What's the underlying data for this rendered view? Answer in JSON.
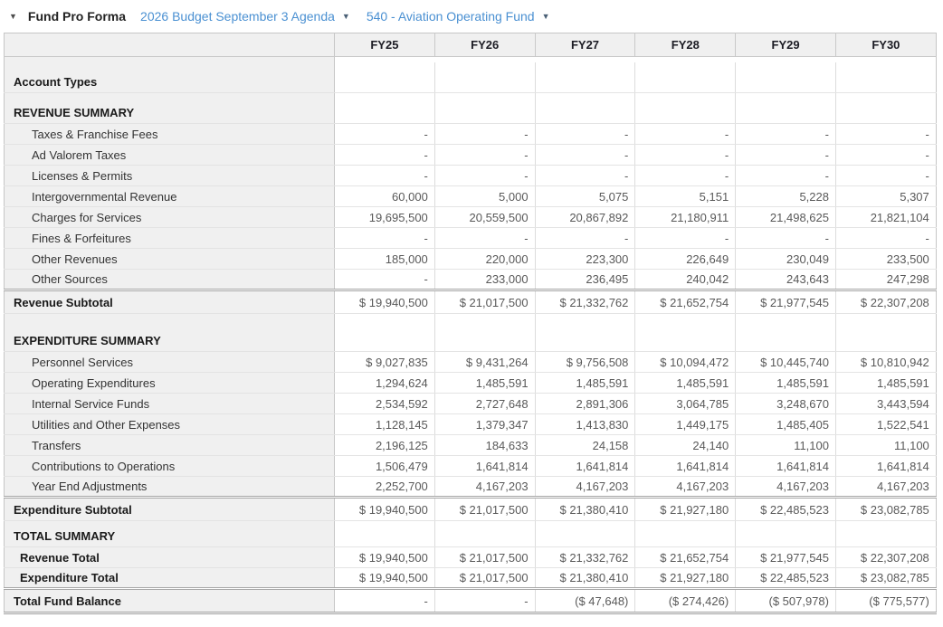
{
  "toolbar": {
    "collapse_icon": "▼",
    "title": "Fund Pro Forma",
    "budget_dropdown_label": "2026 Budget September 3 Agenda",
    "fund_dropdown_label": "540 - Aviation Operating Fund",
    "dropdown_caret": "▼"
  },
  "colors": {
    "link_blue": "#4a90d2",
    "header_bg": "#f0f0f0",
    "grid_line": "#dcdcdc",
    "number_text": "#595959"
  },
  "table": {
    "columns": [
      "FY25",
      "FY26",
      "FY27",
      "FY28",
      "FY29",
      "FY30"
    ],
    "rows": [
      {
        "label": "Account Types",
        "type": "section",
        "size": "md",
        "values": [
          "",
          "",
          "",
          "",
          "",
          ""
        ]
      },
      {
        "label": "REVENUE SUMMARY",
        "type": "section",
        "size": "md",
        "values": [
          "",
          "",
          "",
          "",
          "",
          ""
        ]
      },
      {
        "label": "Taxes & Franchise Fees",
        "type": "detail",
        "values": [
          "-",
          "-",
          "-",
          "-",
          "-",
          "-"
        ]
      },
      {
        "label": "Ad Valorem Taxes",
        "type": "detail",
        "values": [
          "-",
          "-",
          "-",
          "-",
          "-",
          "-"
        ]
      },
      {
        "label": "Licenses & Permits",
        "type": "detail",
        "values": [
          "-",
          "-",
          "-",
          "-",
          "-",
          "-"
        ]
      },
      {
        "label": "Intergovernmental Revenue",
        "type": "detail",
        "values": [
          "60,000",
          "5,000",
          "5,075",
          "5,151",
          "5,228",
          "5,307"
        ]
      },
      {
        "label": "Charges for Services",
        "type": "detail",
        "values": [
          "19,695,500",
          "20,559,500",
          "20,867,892",
          "21,180,911",
          "21,498,625",
          "21,821,104"
        ]
      },
      {
        "label": "Fines & Forfeitures",
        "type": "detail",
        "values": [
          "-",
          "-",
          "-",
          "-",
          "-",
          "-"
        ]
      },
      {
        "label": "Other Revenues",
        "type": "detail",
        "values": [
          "185,000",
          "220,000",
          "223,300",
          "226,649",
          "230,049",
          "233,500"
        ]
      },
      {
        "label": "Other Sources",
        "type": "detail",
        "values": [
          "-",
          "233,000",
          "236,495",
          "240,042",
          "243,643",
          "247,298"
        ]
      },
      {
        "label": "Revenue Subtotal",
        "type": "subtotal",
        "values": [
          "$ 19,940,500",
          "$ 21,017,500",
          "$ 21,332,762",
          "$ 21,652,754",
          "$ 21,977,545",
          "$ 22,307,208"
        ]
      },
      {
        "label": "EXPENDITURE SUMMARY",
        "type": "section",
        "size": "lg",
        "values": [
          "",
          "",
          "",
          "",
          "",
          ""
        ]
      },
      {
        "label": "Personnel Services",
        "type": "detail",
        "values": [
          "$ 9,027,835",
          "$ 9,431,264",
          "$ 9,756,508",
          "$ 10,094,472",
          "$ 10,445,740",
          "$ 10,810,942"
        ]
      },
      {
        "label": "Operating Expenditures",
        "type": "detail",
        "values": [
          "1,294,624",
          "1,485,591",
          "1,485,591",
          "1,485,591",
          "1,485,591",
          "1,485,591"
        ]
      },
      {
        "label": "Internal Service Funds",
        "type": "detail",
        "values": [
          "2,534,592",
          "2,727,648",
          "2,891,306",
          "3,064,785",
          "3,248,670",
          "3,443,594"
        ]
      },
      {
        "label": "Utilities and Other Expenses",
        "type": "detail",
        "values": [
          "1,128,145",
          "1,379,347",
          "1,413,830",
          "1,449,175",
          "1,485,405",
          "1,522,541"
        ]
      },
      {
        "label": "Transfers",
        "type": "detail",
        "values": [
          "2,196,125",
          "184,633",
          "24,158",
          "24,140",
          "11,100",
          "11,100"
        ]
      },
      {
        "label": "Contributions to Operations",
        "type": "detail",
        "values": [
          "1,506,479",
          "1,641,814",
          "1,641,814",
          "1,641,814",
          "1,641,814",
          "1,641,814"
        ]
      },
      {
        "label": "Year End Adjustments",
        "type": "detail",
        "values": [
          "2,252,700",
          "4,167,203",
          "4,167,203",
          "4,167,203",
          "4,167,203",
          "4,167,203"
        ]
      },
      {
        "label": "Expenditure Subtotal",
        "type": "subtotal",
        "values": [
          "$ 19,940,500",
          "$ 21,017,500",
          "$ 21,380,410",
          "$ 21,927,180",
          "$ 22,485,523",
          "$ 23,082,785"
        ]
      },
      {
        "label": "TOTAL SUMMARY",
        "type": "section",
        "size": "sm",
        "values": [
          "",
          "",
          "",
          "",
          "",
          ""
        ]
      },
      {
        "label": "Revenue Total",
        "type": "total",
        "values": [
          "$ 19,940,500",
          "$ 21,017,500",
          "$ 21,332,762",
          "$ 21,652,754",
          "$ 21,977,545",
          "$ 22,307,208"
        ]
      },
      {
        "label": "Expenditure Total",
        "type": "total",
        "values": [
          "$ 19,940,500",
          "$ 21,017,500",
          "$ 21,380,410",
          "$ 21,927,180",
          "$ 22,485,523",
          "$ 23,082,785"
        ]
      },
      {
        "label": "Total Fund Balance",
        "type": "grandtotal",
        "values": [
          "-",
          "-",
          "($ 47,648)",
          "($ 274,426)",
          "($ 507,978)",
          "($ 775,577)"
        ]
      }
    ]
  }
}
